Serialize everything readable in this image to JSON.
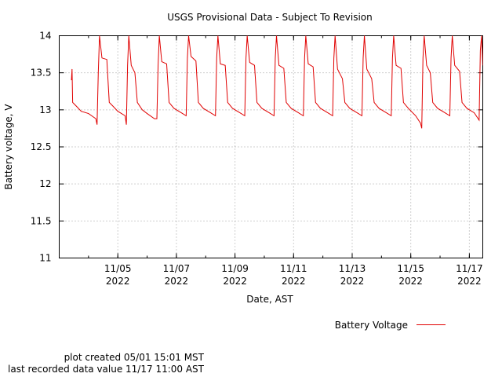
{
  "chart_data": {
    "type": "line",
    "title": "USGS Provisional Data - Subject To Revision",
    "xlabel": "Date, AST",
    "ylabel": "Battery voltage, V",
    "ylim": [
      11,
      14
    ],
    "xlim": [
      "2022-11-03T00:00",
      "2022-11-17T11:00"
    ],
    "y_ticks": [
      11,
      11.5,
      12,
      12.5,
      13,
      13.5,
      14
    ],
    "y_tick_labels": [
      "11",
      "11.5",
      "12",
      "12.5",
      "13",
      "13.5",
      "14"
    ],
    "x_ticks": [
      {
        "date": "2022-11-05",
        "label": "11/05",
        "year": "2022"
      },
      {
        "date": "2022-11-07",
        "label": "11/07",
        "year": "2022"
      },
      {
        "date": "2022-11-09",
        "label": "11/09",
        "year": "2022"
      },
      {
        "date": "2022-11-11",
        "label": "11/11",
        "year": "2022"
      },
      {
        "date": "2022-11-13",
        "label": "11/13",
        "year": "2022"
      },
      {
        "date": "2022-11-15",
        "label": "11/15",
        "year": "2022"
      },
      {
        "date": "2022-11-17",
        "label": "11/17",
        "year": "2022"
      }
    ],
    "grid": true,
    "legend_position": "bottom-right",
    "series": [
      {
        "name": "Battery Voltage",
        "color": "#e00000",
        "points": [
          [
            "2022-11-03T10:00",
            13.4
          ],
          [
            "2022-11-03T10:30",
            13.55
          ],
          [
            "2022-11-03T11:00",
            13.1
          ],
          [
            "2022-11-03T14:00",
            13.05
          ],
          [
            "2022-11-03T18:00",
            12.98
          ],
          [
            "2022-11-04T00:00",
            12.95
          ],
          [
            "2022-11-04T06:00",
            12.88
          ],
          [
            "2022-11-04T07:00",
            12.8
          ],
          [
            "2022-11-04T08:00",
            13.5
          ],
          [
            "2022-11-04T09:00",
            14.0
          ],
          [
            "2022-11-04T11:00",
            13.7
          ],
          [
            "2022-11-04T15:00",
            13.68
          ],
          [
            "2022-11-04T17:00",
            13.1
          ],
          [
            "2022-11-04T20:00",
            13.05
          ],
          [
            "2022-11-05T00:00",
            12.98
          ],
          [
            "2022-11-05T06:00",
            12.92
          ],
          [
            "2022-11-05T07:00",
            12.8
          ],
          [
            "2022-11-05T08:00",
            13.6
          ],
          [
            "2022-11-05T09:00",
            14.0
          ],
          [
            "2022-11-05T11:00",
            13.6
          ],
          [
            "2022-11-05T14:00",
            13.5
          ],
          [
            "2022-11-05T16:00",
            13.1
          ],
          [
            "2022-11-05T20:00",
            13.0
          ],
          [
            "2022-11-06T00:00",
            12.95
          ],
          [
            "2022-11-06T06:00",
            12.88
          ],
          [
            "2022-11-06T08:00",
            12.88
          ],
          [
            "2022-11-06T09:00",
            13.6
          ],
          [
            "2022-11-06T10:00",
            14.0
          ],
          [
            "2022-11-06T12:00",
            13.65
          ],
          [
            "2022-11-06T16:00",
            13.62
          ],
          [
            "2022-11-06T18:00",
            13.1
          ],
          [
            "2022-11-06T22:00",
            13.02
          ],
          [
            "2022-11-07T04:00",
            12.96
          ],
          [
            "2022-11-07T08:00",
            12.92
          ],
          [
            "2022-11-07T09:00",
            13.7
          ],
          [
            "2022-11-07T10:00",
            14.0
          ],
          [
            "2022-11-07T12:00",
            13.72
          ],
          [
            "2022-11-07T16:00",
            13.66
          ],
          [
            "2022-11-07T18:00",
            13.1
          ],
          [
            "2022-11-07T22:00",
            13.02
          ],
          [
            "2022-11-08T04:00",
            12.96
          ],
          [
            "2022-11-08T08:00",
            12.92
          ],
          [
            "2022-11-08T09:00",
            13.7
          ],
          [
            "2022-11-08T10:00",
            14.0
          ],
          [
            "2022-11-08T12:00",
            13.62
          ],
          [
            "2022-11-08T16:00",
            13.6
          ],
          [
            "2022-11-08T18:00",
            13.1
          ],
          [
            "2022-11-08T22:00",
            13.02
          ],
          [
            "2022-11-09T04:00",
            12.96
          ],
          [
            "2022-11-09T08:00",
            12.92
          ],
          [
            "2022-11-09T09:00",
            13.7
          ],
          [
            "2022-11-09T10:00",
            14.0
          ],
          [
            "2022-11-09T12:00",
            13.64
          ],
          [
            "2022-11-09T16:00",
            13.6
          ],
          [
            "2022-11-09T18:00",
            13.1
          ],
          [
            "2022-11-09T22:00",
            13.02
          ],
          [
            "2022-11-10T04:00",
            12.96
          ],
          [
            "2022-11-10T08:00",
            12.92
          ],
          [
            "2022-11-10T09:00",
            13.7
          ],
          [
            "2022-11-10T10:00",
            14.0
          ],
          [
            "2022-11-10T12:00",
            13.6
          ],
          [
            "2022-11-10T16:00",
            13.56
          ],
          [
            "2022-11-10T18:00",
            13.1
          ],
          [
            "2022-11-10T22:00",
            13.02
          ],
          [
            "2022-11-11T04:00",
            12.96
          ],
          [
            "2022-11-11T08:00",
            12.92
          ],
          [
            "2022-11-11T09:00",
            13.7
          ],
          [
            "2022-11-11T10:00",
            14.0
          ],
          [
            "2022-11-11T12:00",
            13.62
          ],
          [
            "2022-11-11T16:00",
            13.58
          ],
          [
            "2022-11-11T18:00",
            13.1
          ],
          [
            "2022-11-11T22:00",
            13.02
          ],
          [
            "2022-11-12T04:00",
            12.96
          ],
          [
            "2022-11-12T08:00",
            12.92
          ],
          [
            "2022-11-12T09:00",
            13.7
          ],
          [
            "2022-11-12T10:00",
            14.0
          ],
          [
            "2022-11-12T12:00",
            13.55
          ],
          [
            "2022-11-12T16:00",
            13.42
          ],
          [
            "2022-11-12T18:00",
            13.1
          ],
          [
            "2022-11-12T22:00",
            13.02
          ],
          [
            "2022-11-13T04:00",
            12.96
          ],
          [
            "2022-11-13T08:00",
            12.92
          ],
          [
            "2022-11-13T09:00",
            13.7
          ],
          [
            "2022-11-13T10:00",
            14.0
          ],
          [
            "2022-11-13T12:00",
            13.55
          ],
          [
            "2022-11-13T16:00",
            13.42
          ],
          [
            "2022-11-13T18:00",
            13.1
          ],
          [
            "2022-11-13T22:00",
            13.02
          ],
          [
            "2022-11-14T04:00",
            12.96
          ],
          [
            "2022-11-14T08:00",
            12.92
          ],
          [
            "2022-11-14T09:00",
            13.7
          ],
          [
            "2022-11-14T10:00",
            14.0
          ],
          [
            "2022-11-14T12:00",
            13.6
          ],
          [
            "2022-11-14T16:00",
            13.56
          ],
          [
            "2022-11-14T18:00",
            13.1
          ],
          [
            "2022-11-14T22:00",
            13.02
          ],
          [
            "2022-11-15T04:00",
            12.92
          ],
          [
            "2022-11-15T08:00",
            12.82
          ],
          [
            "2022-11-15T09:00",
            12.75
          ],
          [
            "2022-11-15T10:00",
            13.7
          ],
          [
            "2022-11-15T11:00",
            14.0
          ],
          [
            "2022-11-15T13:00",
            13.6
          ],
          [
            "2022-11-15T16:00",
            13.5
          ],
          [
            "2022-11-15T18:00",
            13.1
          ],
          [
            "2022-11-15T22:00",
            13.02
          ],
          [
            "2022-11-16T04:00",
            12.96
          ],
          [
            "2022-11-16T08:00",
            12.92
          ],
          [
            "2022-11-16T09:00",
            13.7
          ],
          [
            "2022-11-16T10:00",
            14.0
          ],
          [
            "2022-11-16T12:00",
            13.6
          ],
          [
            "2022-11-16T16:00",
            13.52
          ],
          [
            "2022-11-16T18:00",
            13.1
          ],
          [
            "2022-11-16T22:00",
            13.02
          ],
          [
            "2022-11-17T04:00",
            12.96
          ],
          [
            "2022-11-17T08:00",
            12.86
          ],
          [
            "2022-11-17T09:00",
            13.8
          ],
          [
            "2022-11-17T10:00",
            14.0
          ],
          [
            "2022-11-17T11:00",
            13.6
          ]
        ]
      }
    ]
  },
  "footer": {
    "plot_created": "plot created 05/01 15:01 MST",
    "last_value": "last recorded data value 11/17 11:00 AST"
  }
}
